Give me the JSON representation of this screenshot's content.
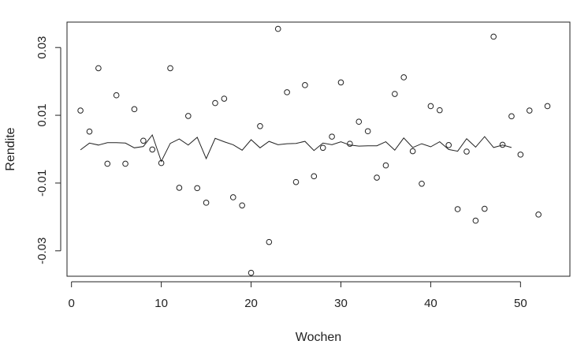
{
  "chart_data": {
    "type": "scatter",
    "xlabel": "Wochen",
    "ylabel": "Rendite",
    "xlim": [
      -0.5,
      55.5
    ],
    "ylim": [
      -0.0375,
      0.0375
    ],
    "xticks": [
      0,
      10,
      20,
      30,
      40,
      50
    ],
    "xtick_labels": [
      "0",
      "10",
      "20",
      "30",
      "40",
      "50"
    ],
    "yticks": [
      -0.03,
      -0.01,
      0.01,
      0.03
    ],
    "ytick_labels": [
      "-0.03",
      "-0.01",
      "0.01",
      "0.03"
    ],
    "grid": false,
    "series": [
      {
        "type": "scatter",
        "x": [
          1,
          2,
          3,
          4,
          5,
          6,
          7,
          8,
          9,
          10,
          11,
          12,
          13,
          14,
          15,
          16,
          17,
          18,
          19,
          20,
          21,
          22,
          23,
          24,
          25,
          26,
          27,
          28,
          29,
          30,
          31,
          32,
          33,
          34,
          35,
          36,
          37,
          38,
          39,
          40,
          41,
          42,
          43,
          44,
          45,
          46,
          47,
          48,
          49,
          50,
          51,
          52,
          53
        ],
        "y": [
          0.0114,
          0.0052,
          0.0239,
          -0.0043,
          0.0159,
          -0.0043,
          0.0118,
          0.0025,
          -0.0001,
          -0.0041,
          0.0239,
          -0.0114,
          0.0098,
          -0.0115,
          -0.0158,
          0.0136,
          0.0149,
          -0.0142,
          -0.0166,
          -0.0365,
          0.0068,
          -0.0274,
          0.0355,
          0.0168,
          -0.0097,
          0.0189,
          -0.008,
          0.0004,
          0.0037,
          0.0197,
          0.0016,
          0.0081,
          0.0053,
          -0.0084,
          -0.0048,
          0.0163,
          0.0212,
          -0.0006,
          -0.0102,
          0.0127,
          0.0115,
          0.0012,
          -0.0177,
          -0.0007,
          -0.0211,
          -0.0176,
          0.0332,
          0.0013,
          0.0097,
          -0.0016,
          0.0114,
          -0.0193,
          0.0127
        ]
      },
      {
        "type": "line",
        "x": [
          1,
          2,
          3,
          4,
          5,
          6,
          7,
          8,
          9,
          10,
          11,
          12,
          13,
          14,
          15,
          16,
          17,
          18,
          19,
          20,
          21,
          22,
          23,
          24,
          25,
          26,
          27,
          28,
          29,
          30,
          31,
          32,
          33,
          34,
          35,
          36,
          37,
          38,
          39,
          40,
          41,
          42,
          43,
          44,
          45,
          46,
          47,
          48,
          49
        ],
        "y": [
          -0.0002,
          0.0018,
          0.0012,
          0.0019,
          0.0019,
          0.0018,
          0.0004,
          0.0008,
          0.0042,
          -0.0036,
          0.0017,
          0.003,
          0.0012,
          0.0035,
          -0.0028,
          0.0032,
          0.0022,
          0.0013,
          -0.0003,
          0.0028,
          0.0004,
          0.0023,
          0.0013,
          0.0016,
          0.0017,
          0.0023,
          -0.0004,
          0.0018,
          0.0013,
          0.0022,
          0.0012,
          0.0009,
          0.001,
          0.001,
          0.0022,
          -0.0003,
          0.0033,
          0.0005,
          0.0016,
          0.0007,
          0.0022,
          -0.0001,
          -0.0006,
          0.0031,
          0.0006,
          0.0037,
          0.0005,
          0.0012,
          0.0005
        ]
      }
    ]
  }
}
